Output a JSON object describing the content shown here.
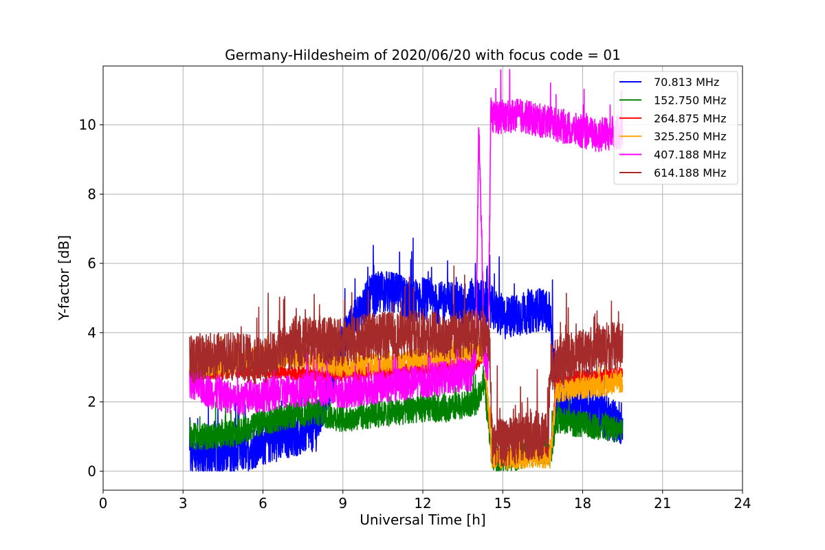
{
  "chart_data": {
    "type": "line",
    "title": "Germany-Hildesheim of 2020/06/20 with focus code = 01",
    "xlabel": "Universal Time [h]",
    "ylabel": "Y-factor [dB]",
    "xlim": [
      0,
      24
    ],
    "ylim": [
      -0.55,
      11.7
    ],
    "xticks": [
      0,
      3,
      6,
      9,
      12,
      15,
      18,
      21,
      24
    ],
    "yticks": [
      0,
      2,
      4,
      6,
      8,
      10
    ],
    "grid": true,
    "legend_position": "top-right",
    "series": [
      {
        "name": " 70.813 MHz",
        "color": "#0000ff",
        "x": [
          3.25,
          4,
          5,
          6,
          7,
          8,
          8.5,
          9,
          9.5,
          10,
          10.5,
          11,
          11.5,
          12,
          12.5,
          13,
          13.5,
          14,
          14.5,
          15,
          15.5,
          16,
          16.5,
          16.8,
          17,
          17.5,
          18,
          18.5,
          19,
          19.5
        ],
        "y": [
          0.4,
          0.5,
          0.5,
          0.8,
          1.0,
          1.2,
          2.5,
          3.8,
          4.4,
          5.0,
          5.2,
          5.1,
          4.9,
          5.0,
          4.8,
          4.9,
          4.8,
          5.0,
          4.8,
          4.4,
          4.5,
          4.6,
          4.7,
          4.5,
          2.1,
          2.0,
          1.9,
          1.7,
          1.5,
          1.4
        ],
        "noise": 0.9
      },
      {
        "name": "152.750 MHz",
        "color": "#008000",
        "x": [
          3.25,
          4,
          5,
          6,
          7,
          8,
          9,
          10,
          11,
          12,
          13,
          14,
          14.3,
          14.6,
          15,
          15.5,
          16,
          16.5,
          16.8,
          17,
          17.5,
          18,
          18.5,
          19,
          19.5
        ],
        "y": [
          1.0,
          1.0,
          1.1,
          1.4,
          1.6,
          1.7,
          1.5,
          1.6,
          1.7,
          1.8,
          1.8,
          2.0,
          2.6,
          0.4,
          0.3,
          0.4,
          0.5,
          0.6,
          0.5,
          1.5,
          1.4,
          1.35,
          1.3,
          1.25,
          1.2
        ],
        "noise": 0.55
      },
      {
        "name": "264.875 MHz",
        "color": "#ff0000",
        "x": [
          3.25,
          4,
          5,
          6,
          7,
          8,
          9,
          10,
          11,
          12,
          13,
          14,
          14.3,
          14.6,
          15,
          16,
          16.8,
          17,
          18,
          19,
          19.5
        ],
        "y": [
          2.8,
          2.85,
          2.9,
          2.9,
          2.85,
          2.8,
          2.8,
          2.85,
          2.9,
          2.95,
          3.0,
          3.1,
          3.4,
          0.5,
          0.4,
          0.5,
          0.5,
          2.6,
          2.7,
          2.75,
          2.8
        ],
        "noise": 0.3
      },
      {
        "name": "325.250 MHz",
        "color": "#ffa500",
        "x": [
          3.25,
          4,
          5,
          6,
          7,
          8,
          9,
          10,
          11,
          12,
          13,
          14,
          14.3,
          14.6,
          15,
          16,
          16.8,
          17,
          18,
          19,
          19.5
        ],
        "y": [
          2.9,
          3.0,
          3.1,
          3.3,
          3.3,
          3.2,
          3.0,
          3.1,
          3.2,
          3.2,
          3.3,
          3.4,
          3.5,
          0.4,
          0.35,
          0.4,
          0.4,
          2.3,
          2.4,
          2.5,
          2.6
        ],
        "noise": 0.45
      },
      {
        "name": "407.188 MHz",
        "color": "#ff00ff",
        "x": [
          3.25,
          4,
          5,
          6,
          7,
          8,
          9,
          10,
          11,
          12,
          13,
          13.8,
          14.0,
          14.1,
          14.2,
          14.3,
          14.45,
          14.55,
          15,
          15.5,
          16,
          17,
          18,
          18.5,
          19,
          19.5
        ],
        "y": [
          2.6,
          2.3,
          2.1,
          2.2,
          2.3,
          2.4,
          2.3,
          2.4,
          2.5,
          2.6,
          2.7,
          2.8,
          3.5,
          10.0,
          7.0,
          3.5,
          3.0,
          10.3,
          10.2,
          10.3,
          10.2,
          10.0,
          9.8,
          9.7,
          9.75,
          9.8
        ],
        "noise": 0.7
      },
      {
        "name": "614.188 MHz",
        "color": "#a52a2a",
        "x": [
          3.25,
          4,
          5,
          6,
          6.5,
          7,
          8,
          9,
          10,
          11,
          12,
          13,
          14,
          14.5,
          14.6,
          15,
          15.5,
          16,
          16.7,
          16.8,
          17,
          17.5,
          18,
          18.5,
          19,
          19.5
        ],
        "y": [
          3.2,
          3.3,
          3.3,
          3.2,
          3.4,
          3.6,
          3.8,
          3.7,
          3.9,
          3.9,
          4.0,
          3.9,
          4.0,
          3.8,
          0.9,
          0.8,
          0.9,
          1.0,
          1.0,
          3.0,
          3.1,
          3.3,
          3.4,
          3.5,
          3.6,
          3.6
        ],
        "noise": 1.0
      }
    ]
  }
}
